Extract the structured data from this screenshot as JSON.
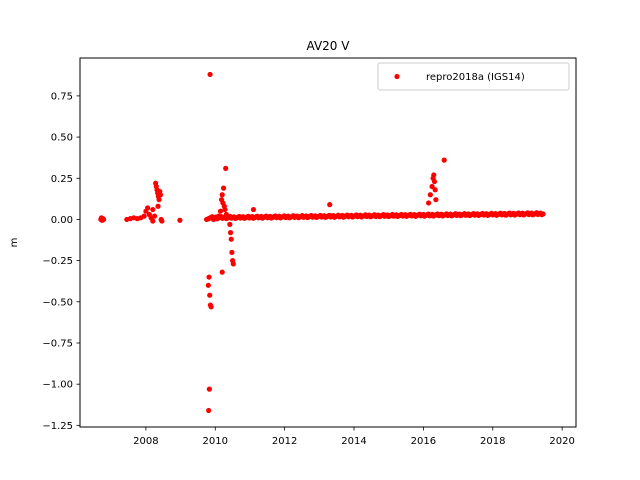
{
  "chart_data": {
    "type": "scatter",
    "title": "AV20 V",
    "xlabel": "",
    "ylabel": "m",
    "xlim": [
      2006.1,
      2020.4
    ],
    "ylim": [
      -1.26,
      0.98
    ],
    "x_ticks": [
      2008,
      2010,
      2012,
      2014,
      2016,
      2018,
      2020
    ],
    "y_ticks": [
      -1.25,
      -1.0,
      -0.75,
      -0.5,
      -0.25,
      0.0,
      0.25,
      0.5,
      0.75
    ],
    "y_tick_labels": [
      "−1.25",
      "−1.00",
      "−0.75",
      "−0.50",
      "−0.25",
      "0.00",
      "0.25",
      "0.50",
      "0.75"
    ],
    "grid": false,
    "legend_position": "upper right",
    "colors": {
      "series": "#ff0000"
    },
    "series": [
      {
        "name": "repro2018a (IGS14)",
        "color": "#ff0000",
        "marker": "circle",
        "points": [
          [
            2006.7,
            0.0
          ],
          [
            2006.72,
            0.01
          ],
          [
            2006.74,
            -0.005
          ],
          [
            2006.76,
            0.005
          ],
          [
            2006.78,
            0.0
          ],
          [
            2007.45,
            0.0
          ],
          [
            2007.55,
            0.005
          ],
          [
            2007.65,
            0.01
          ],
          [
            2007.75,
            0.005
          ],
          [
            2007.85,
            0.01
          ],
          [
            2007.95,
            0.02
          ],
          [
            2008.0,
            0.05
          ],
          [
            2008.05,
            0.07
          ],
          [
            2008.1,
            0.03
          ],
          [
            2008.15,
            0.01
          ],
          [
            2008.2,
            -0.01
          ],
          [
            2008.25,
            0.02
          ],
          [
            2008.28,
            0.22
          ],
          [
            2008.3,
            0.2
          ],
          [
            2008.32,
            0.18
          ],
          [
            2008.34,
            0.16
          ],
          [
            2008.36,
            0.14
          ],
          [
            2008.38,
            0.12
          ],
          [
            2008.4,
            0.17
          ],
          [
            2008.42,
            0.15
          ],
          [
            2008.44,
            0.0
          ],
          [
            2008.46,
            -0.01
          ],
          [
            2008.35,
            0.08
          ],
          [
            2008.2,
            0.06
          ],
          [
            2008.98,
            -0.005
          ],
          [
            2009.75,
            0.0
          ],
          [
            2009.8,
            -0.4
          ],
          [
            2009.82,
            -0.35
          ],
          [
            2009.84,
            -0.46
          ],
          [
            2009.86,
            -0.52
          ],
          [
            2009.88,
            -0.53
          ],
          [
            2009.85,
            0.88
          ],
          [
            2009.83,
            -1.03
          ],
          [
            2009.81,
            -1.16
          ],
          [
            2009.9,
            0.01
          ],
          [
            2009.95,
            0.0
          ],
          [
            2010.0,
            0.01
          ],
          [
            2010.05,
            0.005
          ],
          [
            2010.1,
            0.02
          ],
          [
            2010.15,
            0.05
          ],
          [
            2010.18,
            0.12
          ],
          [
            2010.2,
            0.15
          ],
          [
            2010.22,
            0.1
          ],
          [
            2010.24,
            0.19
          ],
          [
            2010.26,
            0.08
          ],
          [
            2010.28,
            0.06
          ],
          [
            2010.3,
            0.31
          ],
          [
            2010.32,
            0.03
          ],
          [
            2010.2,
            -0.32
          ],
          [
            2010.42,
            -0.03
          ],
          [
            2010.44,
            -0.08
          ],
          [
            2010.46,
            -0.12
          ],
          [
            2010.48,
            -0.2
          ],
          [
            2010.5,
            -0.25
          ],
          [
            2010.52,
            -0.27
          ],
          [
            2011.1,
            0.06
          ],
          [
            2013.3,
            0.09
          ],
          [
            2016.15,
            0.1
          ],
          [
            2016.2,
            0.15
          ],
          [
            2016.25,
            0.2
          ],
          [
            2016.28,
            0.25
          ],
          [
            2016.3,
            0.27
          ],
          [
            2016.32,
            0.23
          ],
          [
            2016.34,
            0.18
          ],
          [
            2016.36,
            0.12
          ],
          [
            2016.6,
            0.36
          ]
        ],
        "trend": {
          "x_start": 2009.8,
          "x_end": 2019.45,
          "y_start": 0.01,
          "y_end": 0.035
        }
      }
    ]
  }
}
